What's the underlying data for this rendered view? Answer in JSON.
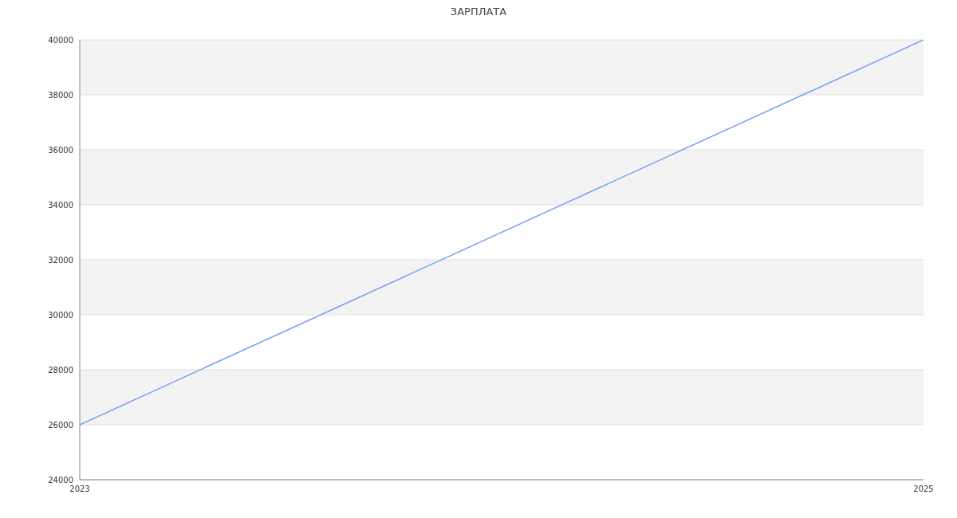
{
  "chart_data": {
    "type": "line",
    "title": "ЗАРПЛАТА",
    "x": [
      2023,
      2025
    ],
    "series": [
      {
        "color": "#779ff2",
        "values": [
          26000,
          40000
        ]
      }
    ],
    "xlim": [
      2023,
      2025
    ],
    "xticks": [
      2023,
      2025
    ],
    "ylim": [
      24000,
      40000
    ],
    "yticks": [
      24000,
      26000,
      28000,
      30000,
      32000,
      34000,
      36000,
      38000,
      40000
    ],
    "grid": "y",
    "marker": "none",
    "line_style": "solid"
  }
}
